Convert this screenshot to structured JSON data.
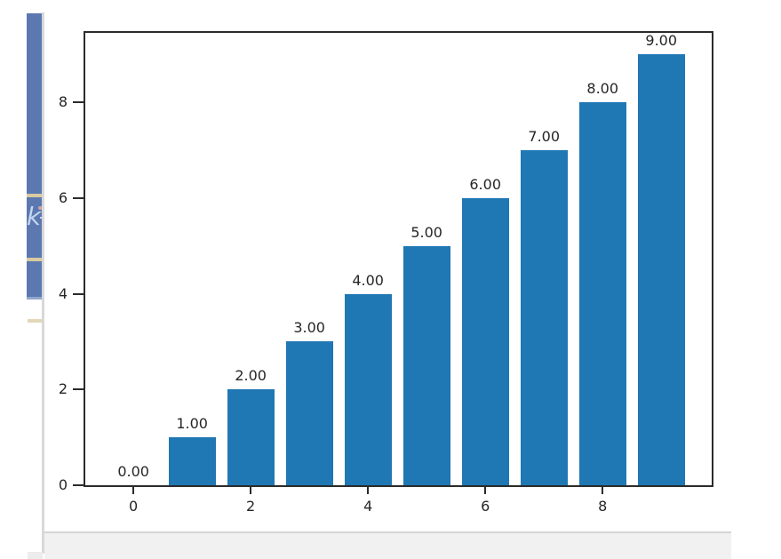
{
  "backdrop": {
    "strip_color": "#5b78b1",
    "accent_line_color": "#d9caa0",
    "glyph": "k",
    "glyph_color": "#c4d5ee"
  },
  "statusbar": {
    "background": "#f1f1f1",
    "border_color": "#d5d5d5"
  },
  "chart_data": {
    "type": "bar",
    "title": "",
    "xlabel": "",
    "ylabel": "",
    "x": [
      0,
      1,
      2,
      3,
      4,
      5,
      6,
      7,
      8,
      9
    ],
    "values": [
      0,
      1,
      2,
      3,
      4,
      5,
      6,
      7,
      8,
      9
    ],
    "bar_labels": [
      "0.00",
      "1.00",
      "2.00",
      "3.00",
      "4.00",
      "5.00",
      "6.00",
      "7.00",
      "8.00",
      "9.00"
    ],
    "bar_width": 0.8,
    "bar_color": "#1f77b4",
    "x_tick_values": [
      0,
      2,
      4,
      6,
      8
    ],
    "x_tick_labels": [
      "0",
      "2",
      "4",
      "6",
      "8"
    ],
    "y_tick_values": [
      0,
      2,
      4,
      6,
      8
    ],
    "y_tick_labels": [
      "0",
      "2",
      "4",
      "6",
      "8"
    ],
    "xlim": [
      -0.82,
      9.86
    ],
    "ylim": [
      0,
      9.45
    ],
    "grid": false,
    "legend_position": null,
    "axis_color": "#2b2b2b",
    "text_color": "#262626"
  }
}
